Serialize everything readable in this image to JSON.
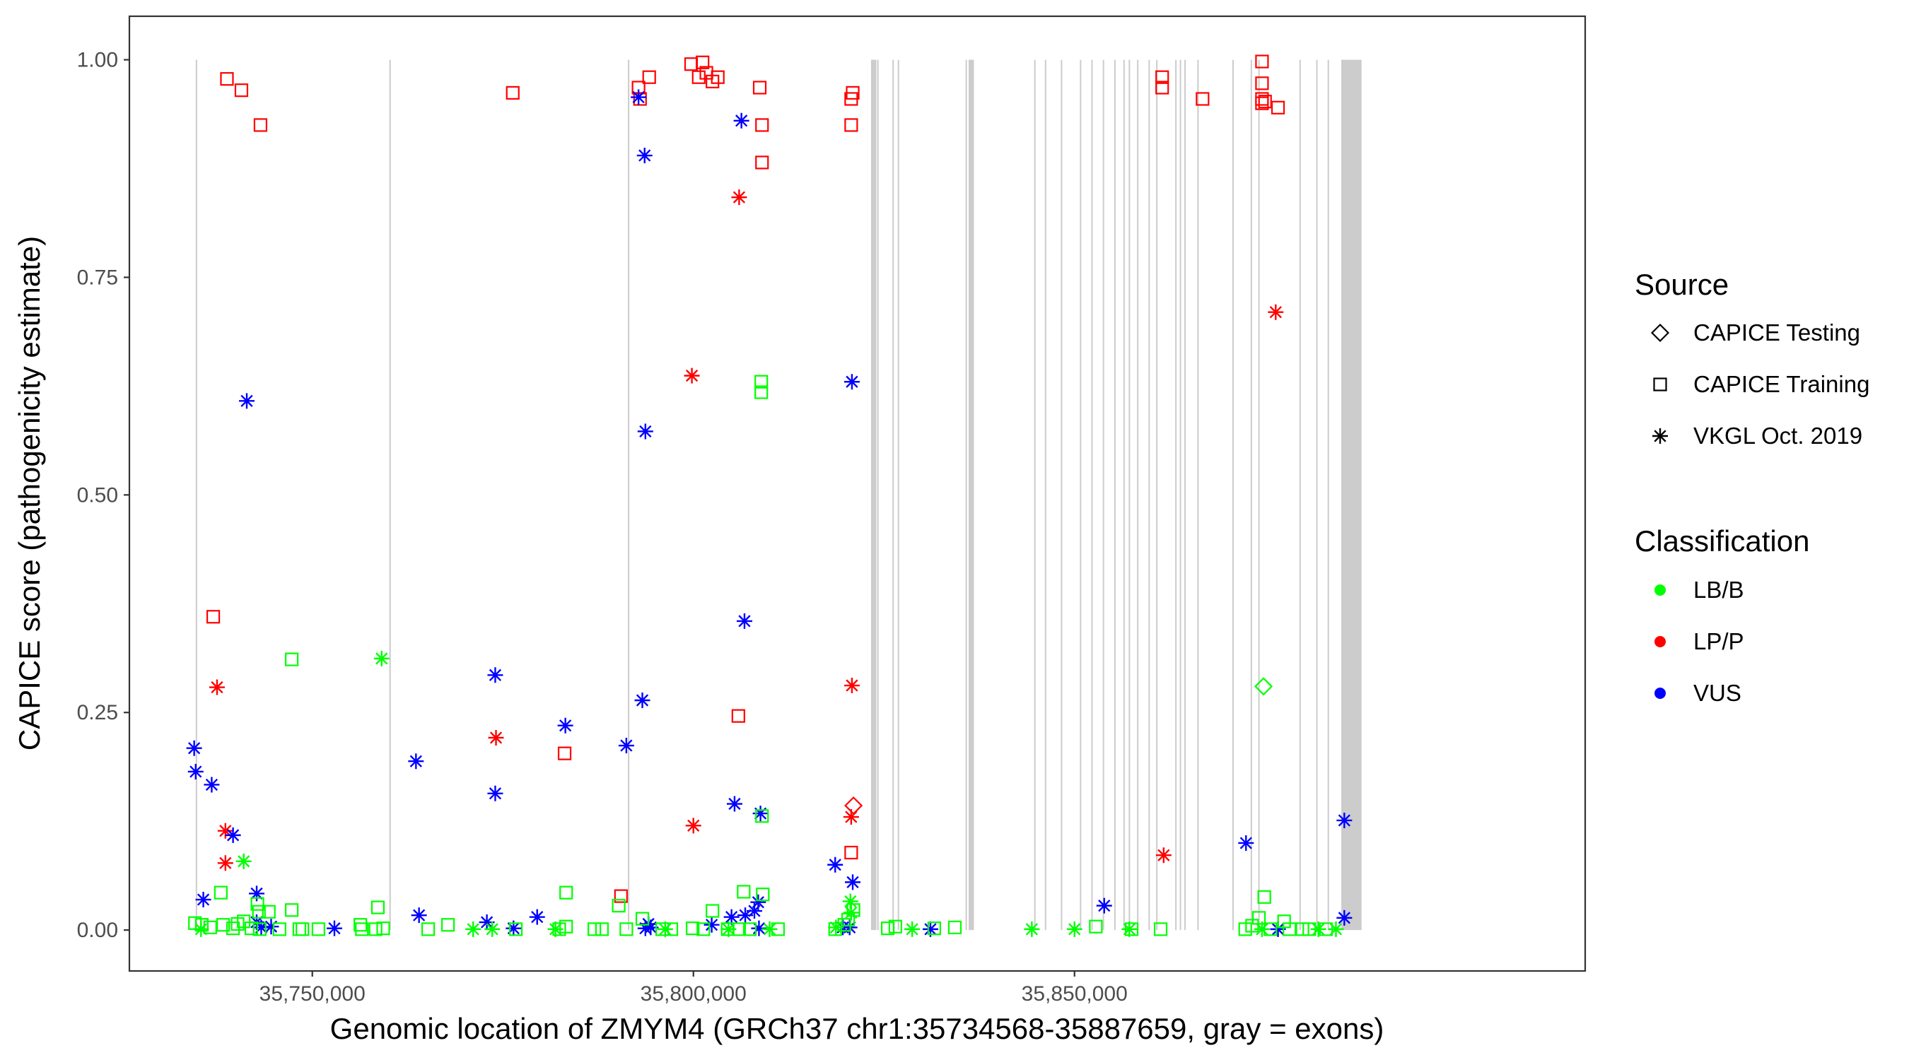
{
  "chart_data": {
    "type": "scatter",
    "title": "",
    "xlabel": "Genomic location of ZMYM4 (GRCh37 chr1:35734568-35887659, gray = exons)",
    "ylabel": "CAPICE score (pathogenicity estimate)",
    "xlim": [
      35726000,
      35917000
    ],
    "ylim": [
      -0.047,
      1.05
    ],
    "xticks": [
      {
        "value": 35750000,
        "label": "35,750,000"
      },
      {
        "value": 35800000,
        "label": "35,800,000"
      },
      {
        "value": 35850000,
        "label": "35,850,000"
      }
    ],
    "yticks": [
      {
        "value": 0.0,
        "label": "0.00"
      },
      {
        "value": 0.25,
        "label": "0.25"
      },
      {
        "value": 0.5,
        "label": "0.50"
      },
      {
        "value": 0.75,
        "label": "0.75"
      },
      {
        "value": 1.0,
        "label": "1.00"
      }
    ],
    "grid": false,
    "colors": {
      "LB/B": "#00ff00",
      "LP/P": "#ff0000",
      "VUS": "#0000ff",
      "exon": "#cccccc"
    },
    "exons": [
      35734800,
      35760200,
      35791500,
      35823800,
      35824200,
      35826200,
      35826900,
      35835800,
      35836200,
      35844800,
      35846200,
      35848300,
      35850800,
      35852300,
      35853800,
      35855300,
      35856500,
      35857200,
      35858300,
      35859800,
      35860800,
      35863300,
      35863900,
      35864500,
      35866200,
      35870800,
      35873200,
      35874200,
      35879600,
      35881800,
      35883300
    ],
    "exon_blocks": [
      [
        35823300,
        35824000
      ],
      [
        35836200,
        35836800
      ],
      [
        35885000,
        35887659
      ]
    ],
    "legend": {
      "source_title": "Source",
      "source_items": [
        {
          "label": "CAPICE Testing",
          "shape": "diamond"
        },
        {
          "label": "CAPICE Training",
          "shape": "square"
        },
        {
          "label": "VKGL Oct. 2019",
          "shape": "star"
        }
      ],
      "class_title": "Classification",
      "class_items": [
        {
          "label": "LB/B",
          "color": "#00ff00"
        },
        {
          "label": "LP/P",
          "color": "#ff0000"
        },
        {
          "label": "VUS",
          "color": "#0000ff"
        }
      ]
    },
    "series": [
      {
        "source": "CAPICE Training",
        "classification": "LP/P",
        "points": [
          [
            35737000,
            0.36
          ],
          [
            35738800,
            0.978
          ],
          [
            35740700,
            0.965
          ],
          [
            35743200,
            0.925
          ],
          [
            35776300,
            0.962
          ],
          [
            35783100,
            0.203
          ],
          [
            35790500,
            0.039
          ],
          [
            35792800,
            0.968
          ],
          [
            35793000,
            0.955
          ],
          [
            35794200,
            0.98
          ],
          [
            35799700,
            0.995
          ],
          [
            35800700,
            0.98
          ],
          [
            35801200,
            0.997
          ],
          [
            35801700,
            0.985
          ],
          [
            35802500,
            0.975
          ],
          [
            35803200,
            0.98
          ],
          [
            35805900,
            0.246
          ],
          [
            35808700,
            0.968
          ],
          [
            35809000,
            0.925
          ],
          [
            35809000,
            0.882
          ],
          [
            35820700,
            0.925
          ],
          [
            35820700,
            0.955
          ],
          [
            35820900,
            0.962
          ],
          [
            35820700,
            0.089
          ],
          [
            35861500,
            0.98
          ],
          [
            35861500,
            0.968
          ],
          [
            35866800,
            0.955
          ],
          [
            35874600,
            0.998
          ],
          [
            35874600,
            0.973
          ],
          [
            35874600,
            0.955
          ],
          [
            35874600,
            0.95
          ],
          [
            35875000,
            0.952
          ],
          [
            35876700,
            0.945
          ]
        ]
      },
      {
        "source": "VKGL Oct. 2019",
        "classification": "LP/P",
        "points": [
          [
            35737500,
            0.279
          ],
          [
            35738600,
            0.114
          ],
          [
            35738600,
            0.077
          ],
          [
            35774100,
            0.221
          ],
          [
            35799800,
            0.637
          ],
          [
            35800000,
            0.12
          ],
          [
            35806000,
            0.842
          ],
          [
            35820800,
            0.281
          ],
          [
            35820700,
            0.13
          ],
          [
            35861700,
            0.086
          ],
          [
            35876400,
            0.71
          ]
        ]
      },
      {
        "source": "CAPICE Testing",
        "classification": "LP/P",
        "points": [
          [
            35821000,
            0.143
          ]
        ]
      },
      {
        "source": "VKGL Oct. 2019",
        "classification": "VUS",
        "points": [
          [
            35734500,
            0.209
          ],
          [
            35734700,
            0.182
          ],
          [
            35736800,
            0.167
          ],
          [
            35739600,
            0.109
          ],
          [
            35741400,
            0.608
          ],
          [
            35735700,
            0.035
          ],
          [
            35742700,
            0.042
          ],
          [
            35742700,
            0.009
          ],
          [
            35743300,
            0.003
          ],
          [
            35744600,
            0.004
          ],
          [
            35752900,
            0.002
          ],
          [
            35763600,
            0.194
          ],
          [
            35764000,
            0.017
          ],
          [
            35772900,
            0.009
          ],
          [
            35774000,
            0.293
          ],
          [
            35774000,
            0.157
          ],
          [
            35776400,
            0.002
          ],
          [
            35779500,
            0.015
          ],
          [
            35783200,
            0.235
          ],
          [
            35791200,
            0.212
          ],
          [
            35792800,
            0.957
          ],
          [
            35793300,
            0.264
          ],
          [
            35793600,
            0.89
          ],
          [
            35793700,
            0.573
          ],
          [
            35793700,
            0.002
          ],
          [
            35794100,
            0.007
          ],
          [
            35794400,
            0.003
          ],
          [
            35802400,
            0.006
          ],
          [
            35805000,
            0.015
          ],
          [
            35805400,
            0.145
          ],
          [
            35806300,
            0.93
          ],
          [
            35806700,
            0.355
          ],
          [
            35806800,
            0.017
          ],
          [
            35808000,
            0.022
          ],
          [
            35808800,
            0.134
          ],
          [
            35808500,
            0.032
          ],
          [
            35808600,
            0.002
          ],
          [
            35818600,
            0.075
          ],
          [
            35819600,
            0.003
          ],
          [
            35820500,
            0.003
          ],
          [
            35820800,
            0.63
          ],
          [
            35820900,
            0.055
          ],
          [
            35831100,
            0.001
          ],
          [
            35853900,
            0.028
          ],
          [
            35872500,
            0.1
          ],
          [
            35876700,
            0.001
          ],
          [
            35885400,
            0.126
          ],
          [
            35885400,
            0.014
          ]
        ]
      },
      {
        "source": "CAPICE Training",
        "classification": "LB/B",
        "points": [
          [
            35734600,
            0.008
          ],
          [
            35735500,
            0.006
          ],
          [
            35736600,
            0.003
          ],
          [
            35738000,
            0.043
          ],
          [
            35738300,
            0.006
          ],
          [
            35739600,
            0.002
          ],
          [
            35740200,
            0.007
          ],
          [
            35741000,
            0.01
          ],
          [
            35742000,
            0.002
          ],
          [
            35742800,
            0.03
          ],
          [
            35743000,
            0.021
          ],
          [
            35743100,
            0.001
          ],
          [
            35744300,
            0.021
          ],
          [
            35745700,
            0.001
          ],
          [
            35747300,
            0.311
          ],
          [
            35747300,
            0.023
          ],
          [
            35748300,
            0.001
          ],
          [
            35748700,
            0.001
          ],
          [
            35750800,
            0.001
          ],
          [
            35756300,
            0.006
          ],
          [
            35756500,
            0.001
          ],
          [
            35758600,
            0.026
          ],
          [
            35758300,
            0.001
          ],
          [
            35759300,
            0.002
          ],
          [
            35765200,
            0.001
          ],
          [
            35767800,
            0.006
          ],
          [
            35776700,
            0.001
          ],
          [
            35782400,
            0.001
          ],
          [
            35783300,
            0.043
          ],
          [
            35783300,
            0.004
          ],
          [
            35787000,
            0.001
          ],
          [
            35788000,
            0.001
          ],
          [
            35790200,
            0.028
          ],
          [
            35791200,
            0.001
          ],
          [
            35793300,
            0.013
          ],
          [
            35795900,
            0.001
          ],
          [
            35797100,
            0.001
          ],
          [
            35799900,
            0.002
          ],
          [
            35801300,
            0.001
          ],
          [
            35802500,
            0.022
          ],
          [
            35804500,
            0.001
          ],
          [
            35806600,
            0.044
          ],
          [
            35806000,
            0.001
          ],
          [
            35808900,
            0.63
          ],
          [
            35808900,
            0.618
          ],
          [
            35809000,
            0.131
          ],
          [
            35809100,
            0.041
          ],
          [
            35807400,
            0.001
          ],
          [
            35811100,
            0.001
          ],
          [
            35818600,
            0.001
          ],
          [
            35819800,
            0.006
          ],
          [
            35820300,
            0.012
          ],
          [
            35821000,
            0.023
          ],
          [
            35825500,
            0.002
          ],
          [
            35826500,
            0.004
          ],
          [
            35831600,
            0.002
          ],
          [
            35834300,
            0.003
          ],
          [
            35852800,
            0.004
          ],
          [
            35857500,
            0.001
          ],
          [
            35861300,
            0.001
          ],
          [
            35872400,
            0.001
          ],
          [
            35873300,
            0.005
          ],
          [
            35874200,
            0.014
          ],
          [
            35874900,
            0.038
          ],
          [
            35875700,
            0.001
          ],
          [
            35877500,
            0.01
          ],
          [
            35878200,
            0.001
          ],
          [
            35879900,
            0.001
          ],
          [
            35880800,
            0.001
          ],
          [
            35883000,
            0.001
          ]
        ]
      },
      {
        "source": "VKGL Oct. 2019",
        "classification": "LB/B",
        "points": [
          [
            35735400,
            0.001
          ],
          [
            35741000,
            0.079
          ],
          [
            35759100,
            0.312
          ],
          [
            35771100,
            0.001
          ],
          [
            35773600,
            0.001
          ],
          [
            35781900,
            0.001
          ],
          [
            35796300,
            0.001
          ],
          [
            35804600,
            0.001
          ],
          [
            35810000,
            0.001
          ],
          [
            35818700,
            0.003
          ],
          [
            35820600,
            0.033
          ],
          [
            35820700,
            0.02
          ],
          [
            35828700,
            0.001
          ],
          [
            35844400,
            0.001
          ],
          [
            35850000,
            0.001
          ],
          [
            35857200,
            0.001
          ],
          [
            35874600,
            0.001
          ],
          [
            35882000,
            0.001
          ],
          [
            35884300,
            0.001
          ]
        ]
      },
      {
        "source": "CAPICE Testing",
        "classification": "LB/B",
        "points": [
          [
            35874800,
            0.28
          ]
        ]
      }
    ]
  }
}
